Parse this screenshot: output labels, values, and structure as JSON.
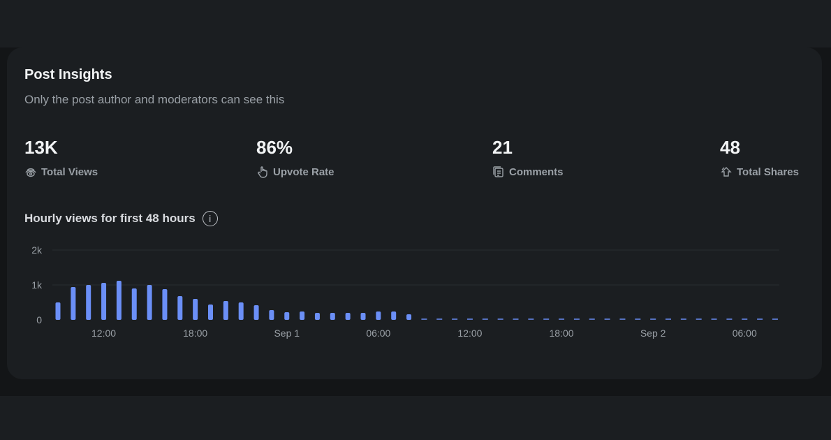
{
  "card": {
    "title": "Post Insights",
    "subtitle": "Only the post author and moderators can see this"
  },
  "stats": [
    {
      "value": "13K",
      "label": "Total Views",
      "icon": "eye-icon"
    },
    {
      "value": "86%",
      "label": "Upvote Rate",
      "icon": "hand-pointer-icon"
    },
    {
      "value": "21",
      "label": "Comments",
      "icon": "comments-icon"
    },
    {
      "value": "48",
      "label": "Total Shares",
      "icon": "share-arrow-icon"
    }
  ],
  "chart_title": "Hourly views for first 48 hours",
  "info_icon": "i",
  "colors": {
    "bar": "#6b8ff7",
    "grid": "#2a2d31",
    "axis_text": "#9aa0a6"
  },
  "chart_data": {
    "type": "bar",
    "title": "Hourly views for first 48 hours",
    "xlabel": "",
    "ylabel": "",
    "ylim": [
      0,
      2000
    ],
    "yticks": [
      "0",
      "1k",
      "2k"
    ],
    "xticks": [
      "12:00",
      "18:00",
      "Sep 1",
      "06:00",
      "12:00",
      "18:00",
      "Sep 2",
      "06:00"
    ],
    "grid": true,
    "categories": [
      "09:00",
      "10:00",
      "11:00",
      "12:00",
      "13:00",
      "14:00",
      "15:00",
      "16:00",
      "17:00",
      "18:00",
      "19:00",
      "20:00",
      "21:00",
      "22:00",
      "23:00",
      "Sep 1 00:00",
      "01:00",
      "02:00",
      "03:00",
      "04:00",
      "05:00",
      "06:00",
      "07:00",
      "08:00",
      "09:00",
      "10:00",
      "11:00",
      "12:00",
      "13:00",
      "14:00",
      "15:00",
      "16:00",
      "17:00",
      "18:00",
      "19:00",
      "20:00",
      "21:00",
      "22:00",
      "23:00",
      "Sep 2 00:00",
      "01:00",
      "02:00",
      "03:00",
      "04:00",
      "05:00",
      "06:00",
      "07:00",
      "08:00"
    ],
    "values": [
      500,
      940,
      1000,
      1060,
      1120,
      900,
      1000,
      880,
      680,
      600,
      440,
      540,
      500,
      420,
      280,
      220,
      240,
      200,
      200,
      200,
      200,
      240,
      240,
      160,
      0,
      0,
      0,
      0,
      0,
      0,
      0,
      0,
      0,
      0,
      0,
      0,
      0,
      0,
      0,
      0,
      0,
      0,
      0,
      0,
      0,
      0,
      0,
      0
    ]
  }
}
